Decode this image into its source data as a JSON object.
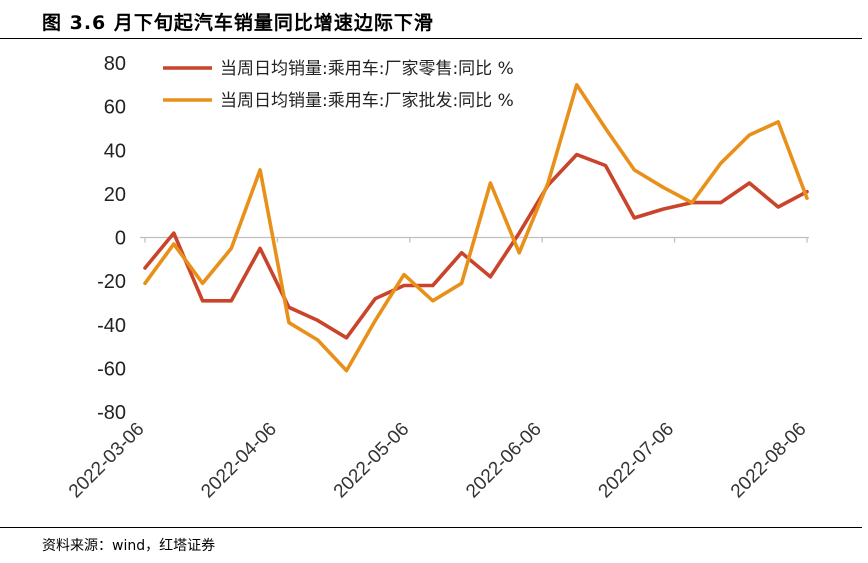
{
  "title": "图 3.6 月下旬起汽车销量同比增速边际下滑",
  "source": "资料来源：wind，红塔证券",
  "chart_data": {
    "type": "line",
    "title": "",
    "xlabel": "",
    "ylabel": "",
    "ylim": [
      -80,
      80
    ],
    "yticks": [
      -80,
      -60,
      -40,
      -20,
      0,
      20,
      40,
      60,
      80
    ],
    "x_tick_labels": [
      "2022-03-06",
      "2022-04-06",
      "2022-05-06",
      "2022-06-06",
      "2022-07-06",
      "2022-08-06"
    ],
    "legend_position": "top-left",
    "grid": false,
    "series": [
      {
        "name": "当周日均销量:乘用车:厂家零售:同比 %",
        "color": "#C9442A",
        "values": [
          -14,
          2,
          -29,
          -29,
          -5,
          -32,
          -38,
          -46,
          -28,
          -22,
          -22,
          -7,
          -18,
          2,
          24,
          38,
          33,
          9,
          13,
          16,
          16,
          25,
          14,
          21
        ]
      },
      {
        "name": "当周日均销量:乘用车:厂家批发:同比 %",
        "color": "#E8901A",
        "values": [
          -21,
          -3,
          -21,
          -5,
          31,
          -39,
          -47,
          -61,
          -38,
          -17,
          -29,
          -21,
          25,
          -7,
          25,
          70,
          50,
          31,
          23,
          16,
          34,
          47,
          53,
          18
        ]
      }
    ]
  }
}
